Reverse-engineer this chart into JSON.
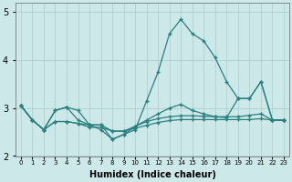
{
  "xlabel": "Humidex (Indice chaleur)",
  "x_values": [
    0,
    1,
    2,
    3,
    4,
    5,
    6,
    7,
    8,
    9,
    10,
    11,
    12,
    13,
    14,
    15,
    16,
    17,
    18,
    19,
    20,
    21,
    22,
    23
  ],
  "line1": [
    3.05,
    2.75,
    2.55,
    2.95,
    3.02,
    2.95,
    2.65,
    2.55,
    2.35,
    2.45,
    2.55,
    3.15,
    3.75,
    4.55,
    4.85,
    4.55,
    4.4,
    4.05,
    3.55,
    3.2,
    3.2,
    3.55,
    2.75,
    2.75
  ],
  "line2": [
    3.05,
    2.75,
    2.55,
    2.95,
    3.02,
    2.75,
    2.65,
    2.65,
    2.35,
    2.45,
    2.62,
    2.75,
    2.88,
    3.0,
    3.08,
    2.95,
    2.88,
    2.82,
    2.8,
    3.2,
    3.2,
    3.55,
    2.75,
    2.75
  ],
  "line3": [
    3.05,
    2.75,
    2.55,
    2.72,
    2.72,
    2.68,
    2.65,
    2.65,
    2.52,
    2.52,
    2.62,
    2.72,
    2.78,
    2.82,
    2.84,
    2.84,
    2.83,
    2.82,
    2.82,
    2.82,
    2.85,
    2.88,
    2.75,
    2.75
  ],
  "line4": [
    3.05,
    2.75,
    2.55,
    2.72,
    2.72,
    2.68,
    2.6,
    2.6,
    2.52,
    2.52,
    2.58,
    2.64,
    2.7,
    2.74,
    2.76,
    2.76,
    2.76,
    2.76,
    2.76,
    2.76,
    2.76,
    2.78,
    2.75,
    2.75
  ],
  "ylim": [
    2.0,
    5.2
  ],
  "yticks": [
    2,
    3,
    4,
    5
  ],
  "bg_color": "#cce8e8",
  "line_color": "#2a7f7f",
  "grid_color": "#aacccc"
}
